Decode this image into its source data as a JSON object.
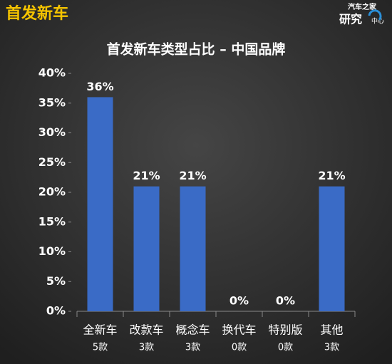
{
  "header": {
    "title": "首发新车",
    "logo_line1": "汽车之家",
    "logo_line2a": "研究",
    "logo_line2b": "中心"
  },
  "chart_data": {
    "type": "bar",
    "title": "首发新车类型占比 – 中国品牌",
    "categories": [
      "全新车",
      "改款车",
      "概念车",
      "换代车",
      "特别版",
      "其他"
    ],
    "sublabels": [
      "5款",
      "3款",
      "3款",
      "0款",
      "0款",
      "3款"
    ],
    "values": [
      36,
      21,
      21,
      0,
      0,
      21
    ],
    "value_labels": [
      "36%",
      "21%",
      "21%",
      "0%",
      "0%",
      "21%"
    ],
    "color": "#3a6bc6",
    "ylim": [
      0,
      40
    ],
    "yticks": [
      {
        "value": 0,
        "label": "0%"
      },
      {
        "value": 5,
        "label": "5%"
      },
      {
        "value": 10,
        "label": "10%"
      },
      {
        "value": 15,
        "label": "15%"
      },
      {
        "value": 20,
        "label": "20%"
      },
      {
        "value": 25,
        "label": "25%"
      },
      {
        "value": 30,
        "label": "30%"
      },
      {
        "value": 35,
        "label": "35%"
      },
      {
        "value": 40,
        "label": "40%"
      }
    ],
    "grid": false
  }
}
